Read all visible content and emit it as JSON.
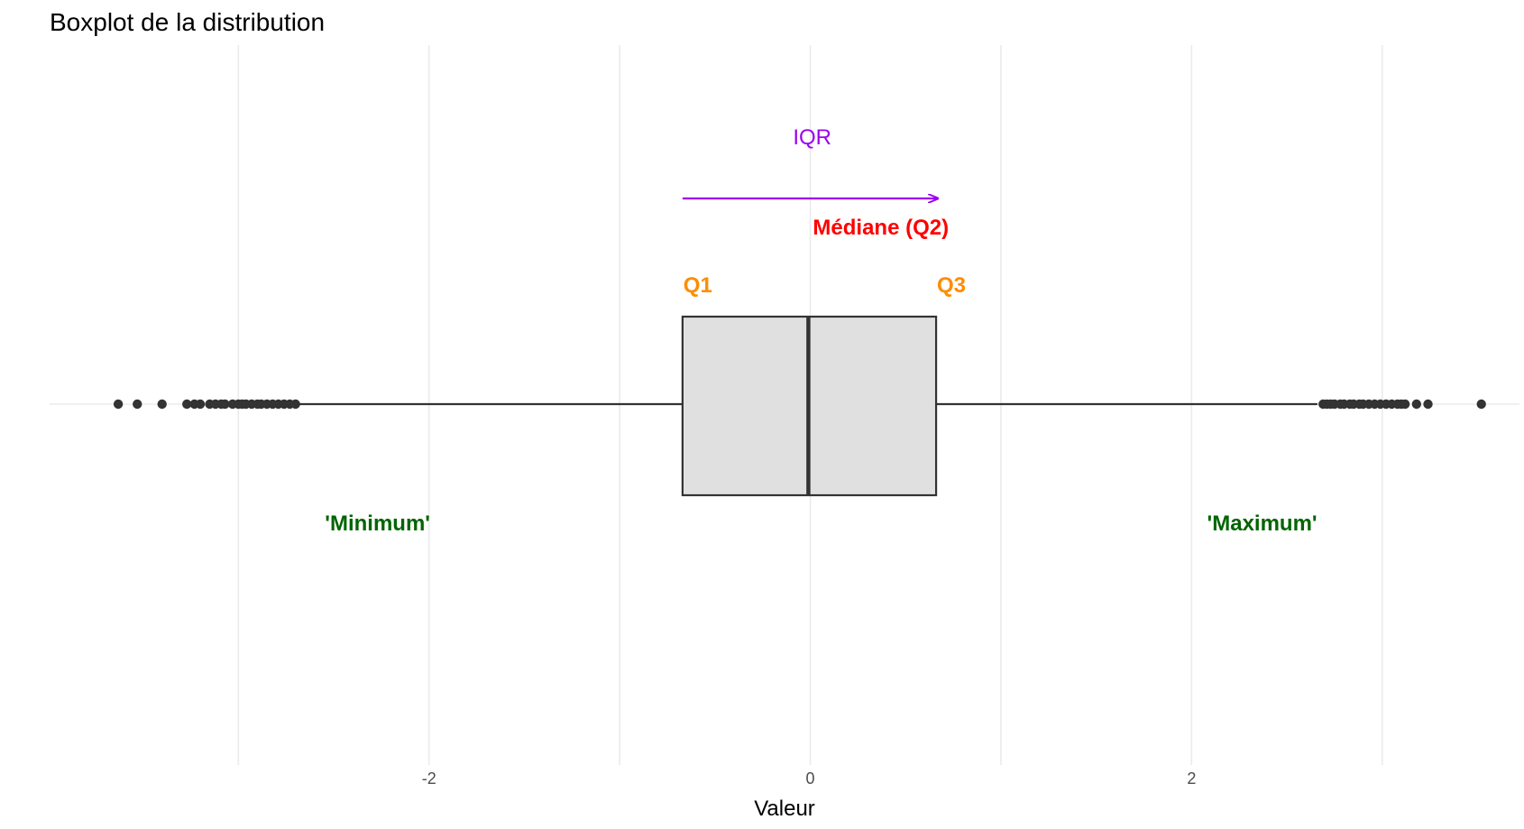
{
  "chart_data": {
    "type": "boxplot",
    "title": "Boxplot de la distribution",
    "xlabel": "Valeur",
    "ylabel": "",
    "xlim": [
      -3.99,
      3.72
    ],
    "grid": true,
    "x_ticks": [
      -2,
      0,
      2
    ],
    "x_tick_labels": [
      "-2",
      "0",
      "2"
    ],
    "box": {
      "q1": -0.67,
      "median": -0.01,
      "q3": 0.66,
      "whisker_low": -2.69,
      "whisker_high": 2.66
    },
    "outliers_low": [
      -3.63,
      -3.53,
      -3.4,
      -3.27,
      -3.23,
      -3.2,
      -3.15,
      -3.12,
      -3.09,
      -3.07,
      -3.03,
      -3.0,
      -2.98,
      -2.96,
      -2.93,
      -2.9,
      -2.88,
      -2.85,
      -2.82,
      -2.79,
      -2.76,
      -2.73,
      -2.7
    ],
    "outliers_high": [
      2.69,
      2.71,
      2.73,
      2.75,
      2.78,
      2.8,
      2.83,
      2.85,
      2.88,
      2.9,
      2.93,
      2.96,
      2.99,
      3.02,
      3.05,
      3.08,
      3.1,
      3.12,
      3.18,
      3.24,
      3.52
    ],
    "annotations": [
      {
        "text": "IQR",
        "x": 0.01,
        "y": 0.74,
        "color": "#9B00F0",
        "bold": false
      },
      {
        "text": "Médiane (Q2)",
        "x": 0.37,
        "y": 0.49,
        "color": "#FF0000",
        "bold": true
      },
      {
        "text": "Q1",
        "x": -0.59,
        "y": 0.33,
        "color": "#FF8C00",
        "bold": true
      },
      {
        "text": "Q3",
        "x": 0.74,
        "y": 0.33,
        "color": "#FF8C00",
        "bold": true
      },
      {
        "text": "'Minimum'",
        "x": -2.27,
        "y": -0.33,
        "color": "#006400",
        "bold": true
      },
      {
        "text": "'Maximum'",
        "x": 2.37,
        "y": -0.33,
        "color": "#006400",
        "bold": true
      }
    ],
    "iqr_arrow": {
      "x_start": -0.67,
      "x_end": 0.66,
      "y": 0.57,
      "color": "#9B00F0"
    },
    "box_fill": "#E0E0E0",
    "box_stroke": "#333333"
  }
}
